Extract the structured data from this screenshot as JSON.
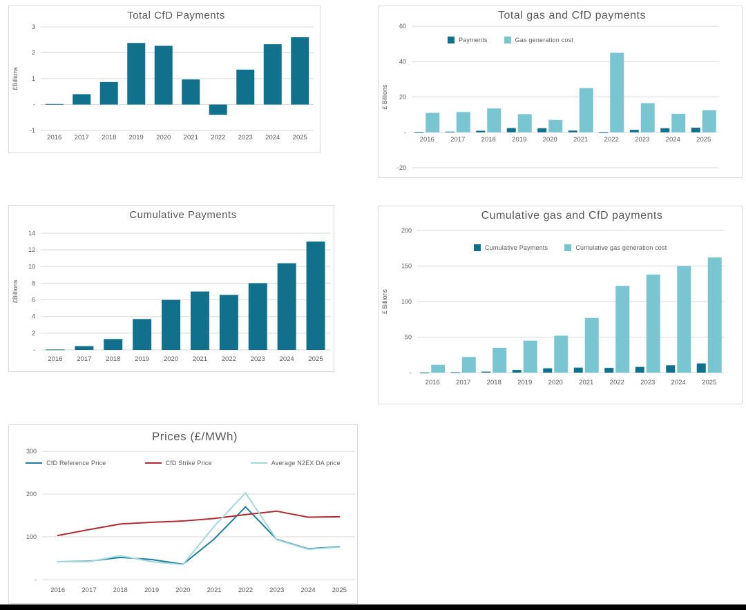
{
  "page": {
    "background": "#ffffff",
    "bottom_bar_color": "#000000",
    "text_color": "#595959",
    "grid_color": "#d9d9d9"
  },
  "palette": {
    "dark_teal": "#11708c",
    "light_teal": "#79c6d2",
    "red": "#b22a2f",
    "pale_teal": "#a5d7de"
  },
  "chart_data": [
    {
      "id": "total-cfd-payments",
      "type": "bar",
      "title": "Total CfD Payments",
      "ylabel": "£Billions",
      "categories": [
        "2016",
        "2017",
        "2018",
        "2019",
        "2020",
        "2021",
        "2022",
        "2023",
        "2024",
        "2025"
      ],
      "series": [
        {
          "name": "Total CfD Payments",
          "color": "#11708c",
          "values": [
            0.02,
            0.4,
            0.87,
            2.38,
            2.27,
            0.97,
            -0.4,
            1.35,
            2.33,
            2.6
          ]
        }
      ],
      "ylim": [
        -1,
        3
      ],
      "yticks": [
        3,
        2,
        1,
        0,
        -1
      ],
      "ytick_labels": [
        "3",
        "2",
        "1",
        "-",
        "-1"
      ],
      "grid": true,
      "legend": false,
      "xlabels_position": "bottom"
    },
    {
      "id": "total-gas-and-cfd-payments",
      "type": "bar",
      "title": "Total gas and CfD payments",
      "ylabel": "£ Billions",
      "categories": [
        "2016",
        "2017",
        "2018",
        "2019",
        "2020",
        "2021",
        "2022",
        "2023",
        "2024",
        "2025"
      ],
      "series": [
        {
          "name": "Payments",
          "color": "#11708c",
          "values": [
            0.05,
            0.4,
            0.9,
            2.4,
            2.3,
            1.0,
            -0.4,
            1.4,
            2.3,
            2.6
          ]
        },
        {
          "name": "Gas generation cost",
          "color": "#79c6d2",
          "values": [
            11,
            11.5,
            13.5,
            10.3,
            7,
            25,
            45,
            16.5,
            10.5,
            12.5
          ]
        }
      ],
      "ylim": [
        -20,
        60
      ],
      "yticks": [
        60,
        40,
        20,
        0,
        -20
      ],
      "ytick_labels": [
        "60",
        "40",
        "20",
        "-",
        "-20"
      ],
      "grid": true,
      "legend": true,
      "legend_position": "top-left-inside",
      "xlabels_position": "below_zero_line"
    },
    {
      "id": "cumulative-payments",
      "type": "bar",
      "title": "Cumulative Payments",
      "ylabel": "£Billions",
      "categories": [
        "2016",
        "2017",
        "2018",
        "2019",
        "2020",
        "2021",
        "2022",
        "2023",
        "2024",
        "2025"
      ],
      "series": [
        {
          "name": "Cumulative Payments",
          "color": "#11708c",
          "values": [
            0.05,
            0.45,
            1.3,
            3.7,
            6.0,
            7.0,
            6.6,
            8.0,
            10.4,
            13.0
          ]
        }
      ],
      "ylim": [
        0,
        14
      ],
      "yticks": [
        14,
        12,
        10,
        8,
        6,
        4,
        2,
        0
      ],
      "ytick_labels": [
        "14",
        "12",
        "10",
        "8",
        "6",
        "4",
        "2",
        "-"
      ],
      "grid": true,
      "legend": false,
      "xlabels_position": "bottom"
    },
    {
      "id": "cumulative-gas-and-cfd-payments",
      "type": "bar",
      "title": "Cumulative gas and CfD payments",
      "ylabel": "£ Billions",
      "categories": [
        "2016",
        "2017",
        "2018",
        "2019",
        "2020",
        "2021",
        "2022",
        "2023",
        "2024",
        "2025"
      ],
      "series": [
        {
          "name": "Cumulative Payments",
          "color": "#11708c",
          "values": [
            0.05,
            0.5,
            1.4,
            3.8,
            6.1,
            7.1,
            6.7,
            8.1,
            10.4,
            13.0
          ]
        },
        {
          "name": "Cumulative gas generation cost",
          "color": "#79c6d2",
          "values": [
            11,
            22,
            35,
            45,
            52,
            77,
            122,
            138,
            150,
            162
          ]
        }
      ],
      "ylim": [
        0,
        200
      ],
      "yticks": [
        200,
        150,
        100,
        50,
        0
      ],
      "ytick_labels": [
        "200",
        "150",
        "100",
        "50",
        "-"
      ],
      "grid": true,
      "legend": true,
      "legend_position": "top-left-inside",
      "xlabels_position": "bottom"
    },
    {
      "id": "prices",
      "type": "line",
      "title": "Prices (£/MWh)",
      "ylabel": "",
      "categories": [
        "2016",
        "2017",
        "2018",
        "2019",
        "2020",
        "2021",
        "2022",
        "2023",
        "2024",
        "2025"
      ],
      "series": [
        {
          "name": "CfD Reference Price",
          "color": "#1b7e9d",
          "values": [
            42,
            43,
            52,
            47,
            36,
            95,
            170,
            94,
            72,
            77
          ]
        },
        {
          "name": "CfD Strike Price",
          "color": "#b22a2f",
          "values": [
            103,
            117,
            130,
            134,
            137,
            143,
            152,
            160,
            146,
            147
          ]
        },
        {
          "name": "Average N2EX DA price",
          "color": "#a5d7de",
          "values": [
            42,
            42,
            56,
            42,
            35,
            125,
            203,
            93,
            71,
            76
          ]
        }
      ],
      "ylim": [
        0,
        300
      ],
      "yticks": [
        300,
        200,
        100,
        0
      ],
      "ytick_labels": [
        "300",
        "200",
        "100",
        "-"
      ],
      "grid": true,
      "legend": true,
      "legend_position": "top-center-inside",
      "xlabels_position": "bottom"
    }
  ]
}
